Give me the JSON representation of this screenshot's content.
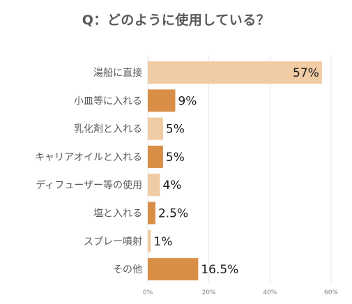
{
  "chart_data": {
    "type": "bar",
    "orientation": "horizontal",
    "title": "Q：どのように使用している？",
    "categories": [
      "湯船に直接",
      "小皿等に入れる",
      "乳化剤と入れる",
      "キャリアオイルと入れる",
      "ディフューザー等の使用",
      "塩と入れる",
      "スプレー噴射",
      "その他"
    ],
    "values": [
      57,
      9,
      5,
      5,
      4,
      2.5,
      1,
      16.5
    ],
    "value_labels": [
      "57%",
      "9%",
      "5%",
      "5%",
      "4%",
      "2.5%",
      "1%",
      "16.5%"
    ],
    "bar_colors": [
      "#F0CBA3",
      "#D98E48",
      "#F0CBA3",
      "#D98E48",
      "#F0CBA3",
      "#D98E48",
      "#F0CBA3",
      "#D98E48"
    ],
    "xlim": [
      0,
      60
    ],
    "xticks": [
      "0%",
      "20%",
      "40%",
      "60%"
    ],
    "grid": true,
    "legend": "none"
  }
}
